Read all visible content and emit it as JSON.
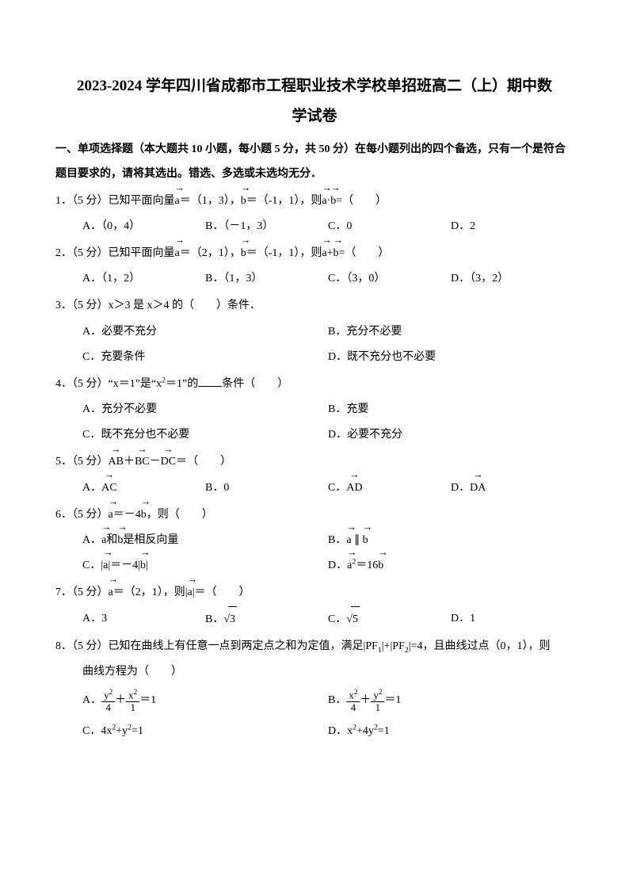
{
  "title_line1": "2023-2024 学年四川省成都市工程职业技术学校单招班高二（上）期中数",
  "title_line2": "学试卷",
  "section1": "一、单项选择题（本大题共 10 小题，每小题 5 分，共 50 分）在每小题列出的四个备选，只有一个是符合题目要求的，请将其选出。错选、多选或未选均无分．",
  "q1": {
    "num": "1．",
    "score": "（5 分）",
    "stem_a": "已知平面向量",
    "a_vec": "a",
    "a_val": "＝（1，3），",
    "b_vec": "b",
    "b_val": "＝（-1，1），则",
    "ab": "a",
    "dot": "·",
    "bb": "b",
    "eq": "=（　　）",
    "A": "A．（0，4）",
    "B": "B．（－1，3）",
    "C": "C．0",
    "D": "D．2"
  },
  "q2": {
    "num": "2．",
    "score": "（5 分）",
    "stem_a": "已知平面向量",
    "a_vec": "a",
    "a_val": "＝（2，1），",
    "b_vec": "b",
    "b_val": "＝（-1，1），则",
    "ab": "a",
    "plus": "+",
    "bb": "b",
    "eq": "=（　　）",
    "A": "A．（1，2）",
    "B": "B．（1，3）",
    "C": "C．（3，0）",
    "D": "D．（3，2）"
  },
  "q3": {
    "num": "3．",
    "score": "（5 分）",
    "stem": "x＞3 是 x＞4 的（　　）条件．",
    "A": "A．必要不充分",
    "B": "B．充分不必要",
    "C": "C．充要条件",
    "D": "D．既不充分也不必要"
  },
  "q4": {
    "num": "4．",
    "score": "（5 分）",
    "stem_a": "“x＝1”是“x",
    "sq": "2",
    "stem_b": "＝1”的",
    "stem_c": "条件（　　）",
    "A": "A．充分不必要",
    "B": "B．充要",
    "C": "C．既不充分也不必要",
    "D": "D．必要不充分"
  },
  "q5": {
    "num": "5．",
    "score": "（5 分）",
    "AB": "AB",
    "plus1": "＋",
    "BC": "BC",
    "minus": "－",
    "DC": "DC",
    "eq": "＝（　　）",
    "A_lbl": "A．",
    "A_v": "AC",
    "B": "B．0",
    "C_lbl": "C．",
    "C_v": "AD",
    "D_lbl": "D．",
    "D_v": "DA"
  },
  "q6": {
    "num": "6．",
    "score": "（5 分）",
    "a": "a",
    "eq1": "＝－4",
    "b": "b",
    "tail": "，则（　　）",
    "A_lbl": "A．",
    "A_a": "a",
    "A_mid": "和",
    "A_b": "b",
    "A_txt": "是相反向量",
    "B_lbl": "B．",
    "B_a": "a",
    "B_mid": " ∥ ",
    "B_b": "b",
    "C_lbl": "C．|",
    "C_a": "a",
    "C_mid": "|＝－4|",
    "C_b": "b",
    "C_end": "|",
    "D_lbl": "D．",
    "D_a": "a",
    "D_sq": "2",
    "D_mid": "＝16",
    "D_b": "b"
  },
  "q7": {
    "num": "7．",
    "score": "（5 分）",
    "a": "a",
    "val": "＝（2，1），则|",
    "a2": "a",
    "eq": "|＝（　　）",
    "A": "A．3",
    "B_lbl": "B．",
    "B_r": "√",
    "B_v": "3",
    "C_lbl": "C．",
    "C_r": "√",
    "C_v": "5",
    "D": "D．1"
  },
  "q8": {
    "num": "8．",
    "score": "（5 分）",
    "stem": "已知在曲线上有任意一点到两定点之和为定值，满足|PF",
    "s1": "1",
    "mid": "|+|PF",
    "s2": "2",
    "stem2": "|=4，且曲线过点（0，1），则",
    "line2": "曲线方程为（　　）",
    "A_lbl": "A．",
    "A_n1": "y",
    "A_e1": "2",
    "A_d1": "4",
    "A_p": "＋",
    "A_n2": "x",
    "A_e2": "2",
    "A_d2": "1",
    "A_eq": "＝1",
    "B_lbl": "B．",
    "B_n1": "x",
    "B_e1": "2",
    "B_d1": "4",
    "B_p": "＋",
    "B_n2": "y",
    "B_e2": "2",
    "B_d2": "1",
    "B_eq": "＝1",
    "C": "C．4x",
    "C_e": "2",
    "C_m": "+y",
    "C_e2": "2",
    "C_eq": "=1",
    "D": "D．x",
    "D_e": "2",
    "D_m": "+4y",
    "D_e2": "2",
    "D_eq": "=1"
  },
  "colors": {
    "text": "#000000",
    "background": "#ffffff"
  },
  "fonts": {
    "title_pt": 19,
    "body_pt": 14
  }
}
